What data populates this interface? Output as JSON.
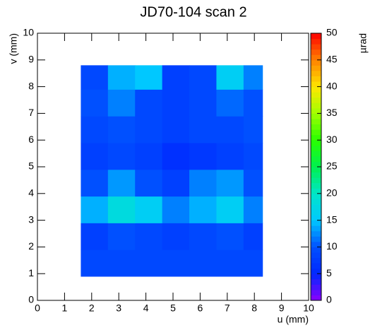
{
  "chart_data": {
    "type": "heatmap",
    "title": "JD70-104 scan 2",
    "x_label": "u (mm)",
    "y_label": "v (mm)",
    "z_label": "µrad",
    "xlim": [
      0,
      10
    ],
    "xticks": [
      0,
      1,
      2,
      3,
      4,
      5,
      6,
      7,
      8,
      9,
      10
    ],
    "ylim": [
      0,
      10
    ],
    "yticks": [
      0,
      1,
      2,
      3,
      4,
      5,
      6,
      7,
      8,
      9,
      10
    ],
    "zlim": [
      0,
      50
    ],
    "zticks": [
      0,
      5,
      10,
      15,
      20,
      25,
      30,
      35,
      40,
      45,
      50
    ],
    "xbins": [
      1.6,
      2.6,
      3.6,
      4.6,
      5.6,
      6.6,
      7.6,
      8.3
    ],
    "ybins": [
      0.9,
      1.9,
      2.9,
      3.9,
      4.9,
      5.9,
      6.9,
      7.9,
      8.8
    ],
    "z": [
      [
        9,
        9,
        9,
        9,
        9,
        9,
        9
      ],
      [
        8,
        10,
        9,
        8,
        9,
        10,
        8
      ],
      [
        14,
        18,
        16,
        12,
        14,
        16,
        12
      ],
      [
        10,
        13,
        10,
        8,
        12,
        13,
        10
      ],
      [
        8,
        9,
        8,
        6,
        7,
        8,
        9
      ],
      [
        9,
        10,
        9,
        8,
        9,
        9,
        10
      ],
      [
        10,
        12,
        9,
        8,
        9,
        11,
        10
      ],
      [
        9,
        14,
        15,
        8,
        9,
        16,
        12
      ]
    ]
  }
}
